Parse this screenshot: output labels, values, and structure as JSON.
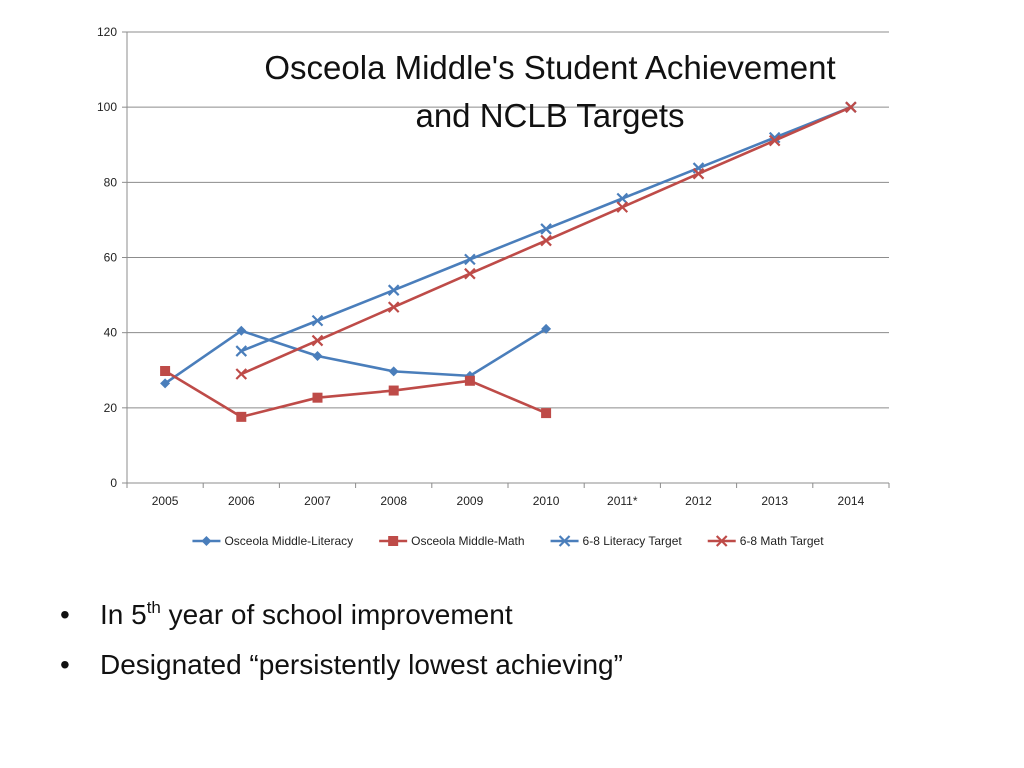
{
  "chart_data": {
    "type": "line",
    "title_lines": [
      "Osceola Middle's Student Achievement",
      "and NCLB Targets"
    ],
    "categories": [
      "2005",
      "2006",
      "2007",
      "2008",
      "2009",
      "2010",
      "2011*",
      "2012",
      "2013",
      "2014"
    ],
    "ylim": [
      0,
      120
    ],
    "yticks": [
      0,
      20,
      40,
      60,
      80,
      100,
      120
    ],
    "grid": "horizontal",
    "legend_position": "bottom",
    "series": [
      {
        "name": "Osceola Middle-Literacy",
        "color": "#4a7ebb",
        "marker": "diamond",
        "values": [
          26.5,
          40.5,
          33.8,
          29.7,
          28.5,
          41.0,
          null,
          null,
          null,
          null
        ]
      },
      {
        "name": "Osceola Middle-Math",
        "color": "#be4b48",
        "marker": "square",
        "values": [
          29.8,
          17.6,
          22.7,
          24.6,
          27.2,
          18.6,
          null,
          null,
          null,
          null
        ]
      },
      {
        "name": "6-8 Literacy Target",
        "color": "#4a7ebb",
        "marker": "x",
        "values": [
          null,
          35.1,
          43.2,
          51.3,
          59.5,
          67.6,
          75.7,
          83.8,
          91.9,
          100
        ]
      },
      {
        "name": "6-8 Math Target",
        "color": "#be4b48",
        "marker": "x",
        "values": [
          null,
          29.0,
          37.9,
          46.8,
          55.7,
          64.5,
          73.4,
          82.3,
          91.1,
          100
        ]
      }
    ]
  },
  "bullets": [
    {
      "before": "In 5",
      "sup": "th",
      "after": " year of school improvement"
    },
    {
      "before": "Designated “persistently lowest achieving”",
      "sup": "",
      "after": ""
    }
  ],
  "bullet_glyph": "•"
}
